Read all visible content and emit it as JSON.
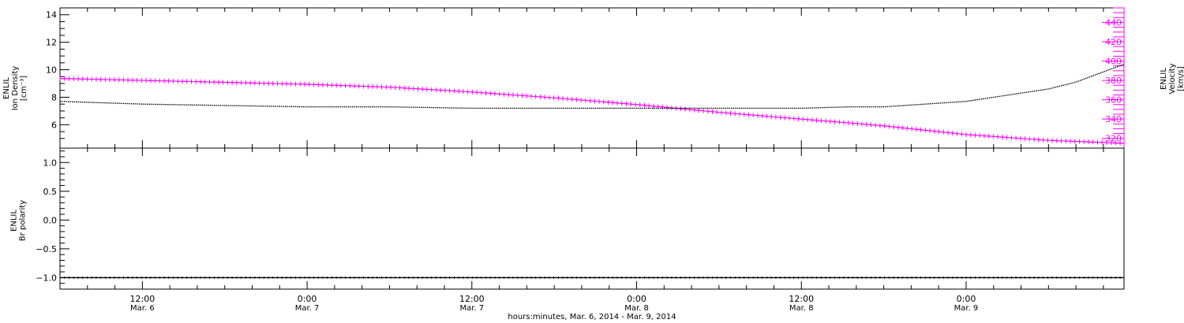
{
  "chart_data": [
    {
      "type": "line",
      "panel": "top",
      "ylabel_left": [
        "ENLIL",
        "Ion Density",
        "[cm⁻³]"
      ],
      "ylabel_right": [
        "ENLIL",
        "Velocity",
        "[km/s]"
      ],
      "xrange_hours": [
        0,
        77.5
      ],
      "ylim_left": [
        4.3,
        14.5
      ],
      "ylim_right": [
        310,
        455
      ],
      "yticks_left": [
        6,
        8,
        10,
        12,
        14
      ],
      "yticks_right": [
        320,
        340,
        360,
        380,
        400,
        420,
        440
      ],
      "series": [
        {
          "axis": "left",
          "color": "#000000",
          "x": [
            0,
            6,
            12,
            18,
            24,
            30,
            36,
            42,
            48,
            54,
            57.5,
            60,
            66,
            72,
            74,
            77.5
          ],
          "y": [
            7.7,
            7.5,
            7.4,
            7.3,
            7.3,
            7.2,
            7.2,
            7.2,
            7.2,
            7.2,
            7.3,
            7.3,
            7.7,
            8.6,
            9.1,
            10.4
          ]
        },
        {
          "axis": "right",
          "color": "#ff00ff",
          "x": [
            0,
            6,
            12,
            18,
            24,
            30,
            36,
            42,
            48,
            54,
            57.5,
            60,
            66,
            72,
            78
          ],
          "y": [
            382,
            380,
            378,
            376,
            373,
            368,
            362,
            355,
            347,
            340,
            336,
            333,
            324,
            318,
            315
          ]
        }
      ]
    },
    {
      "type": "line",
      "panel": "bottom",
      "ylabel_left": [
        "ENLIL",
        "Br polarity"
      ],
      "xrange_hours": [
        0,
        77.5
      ],
      "ylim": [
        -1.2,
        1.25
      ],
      "yticks": [
        "1.0",
        "0.5",
        "0.0",
        "−0.5",
        "−1.0"
      ],
      "series": [
        {
          "color": "#000000",
          "x": [
            0,
            77.5
          ],
          "y": [
            -1.0,
            -1.0
          ]
        }
      ]
    }
  ],
  "x_axis": {
    "ticks": [
      {
        "hours": 6,
        "time": "12:00",
        "date": "Mar. 6"
      },
      {
        "hours": 18,
        "time": "0:00",
        "date": "Mar. 7"
      },
      {
        "hours": 30,
        "time": "12:00",
        "date": "Mar. 7"
      },
      {
        "hours": 42,
        "time": "0:00",
        "date": "Mar. 8"
      },
      {
        "hours": 54,
        "time": "12:00",
        "date": "Mar. 8"
      },
      {
        "hours": 66,
        "time": "0:00",
        "date": "Mar. 9"
      }
    ],
    "label": "hours:minutes, Mar.  6, 2014 - Mar.  9, 2014"
  },
  "colors": {
    "density": "#000000",
    "velocity": "#ff00ff"
  }
}
